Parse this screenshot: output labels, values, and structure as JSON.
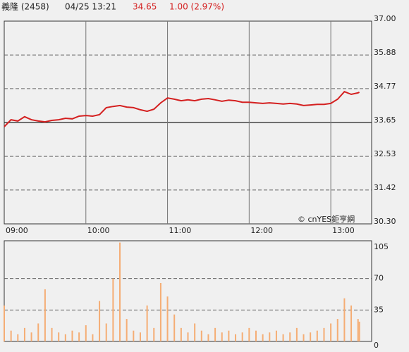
{
  "header": {
    "name": "義隆 (2458)",
    "time": "04/25 13:21",
    "price": "34.65",
    "change": "1.00 (2.97%)"
  },
  "chart_data": [
    {
      "type": "line",
      "color": "#d42020",
      "annotation": "© cnYES鉅亨網",
      "x": [
        "09:00",
        "09:05",
        "09:10",
        "09:15",
        "09:20",
        "09:25",
        "09:30",
        "09:35",
        "09:40",
        "09:45",
        "09:50",
        "09:55",
        "10:00",
        "10:05",
        "10:10",
        "10:15",
        "10:20",
        "10:25",
        "10:30",
        "10:35",
        "10:40",
        "10:45",
        "10:50",
        "10:55",
        "11:00",
        "11:05",
        "11:10",
        "11:15",
        "11:20",
        "11:25",
        "11:30",
        "11:35",
        "11:40",
        "11:45",
        "11:50",
        "11:55",
        "12:00",
        "12:05",
        "12:10",
        "12:15",
        "12:20",
        "12:25",
        "12:30",
        "12:35",
        "12:40",
        "12:45",
        "12:50",
        "12:55",
        "13:00",
        "13:05",
        "13:10",
        "13:15",
        "13:20",
        "13:21"
      ],
      "values": [
        33.51,
        33.74,
        33.7,
        33.84,
        33.74,
        33.7,
        33.67,
        33.72,
        33.74,
        33.79,
        33.77,
        33.86,
        33.88,
        33.86,
        33.91,
        34.14,
        34.18,
        34.21,
        34.16,
        34.14,
        34.07,
        34.02,
        34.09,
        34.3,
        34.46,
        34.42,
        34.37,
        34.4,
        34.37,
        34.42,
        34.44,
        34.4,
        34.35,
        34.39,
        34.37,
        34.32,
        34.32,
        34.3,
        34.28,
        34.3,
        34.28,
        34.26,
        34.28,
        34.26,
        34.21,
        34.23,
        34.25,
        34.25,
        34.28,
        34.42,
        34.67,
        34.58,
        34.63,
        34.65
      ],
      "xlim": [
        "09:00",
        "13:30"
      ],
      "xticks": [
        "09:00",
        "10:00",
        "11:00",
        "12:00",
        "13:00"
      ],
      "ylim": [
        30.3,
        37.0
      ],
      "baseline": 33.65,
      "yticks": [
        {
          "value": 37.0,
          "label": "37.00"
        },
        35.88,
        34.77,
        33.65,
        32.53,
        31.42,
        {
          "value": 30.3,
          "label": "30.30"
        }
      ]
    },
    {
      "type": "bar",
      "color": "#f5ad74",
      "values": [
        40,
        12,
        8,
        15,
        10,
        20,
        58,
        15,
        10,
        8,
        12,
        10,
        18,
        8,
        45,
        20,
        70,
        110,
        25,
        12,
        10,
        40,
        15,
        65,
        50,
        30,
        15,
        10,
        20,
        12,
        8,
        15,
        10,
        12,
        8,
        10,
        15,
        12,
        8,
        10,
        12,
        8,
        10,
        15,
        8,
        10,
        12,
        15,
        20,
        25,
        48,
        40,
        25,
        22
      ],
      "ylim": [
        0,
        112
      ],
      "yticks": [
        0,
        35,
        70,
        105
      ]
    }
  ]
}
